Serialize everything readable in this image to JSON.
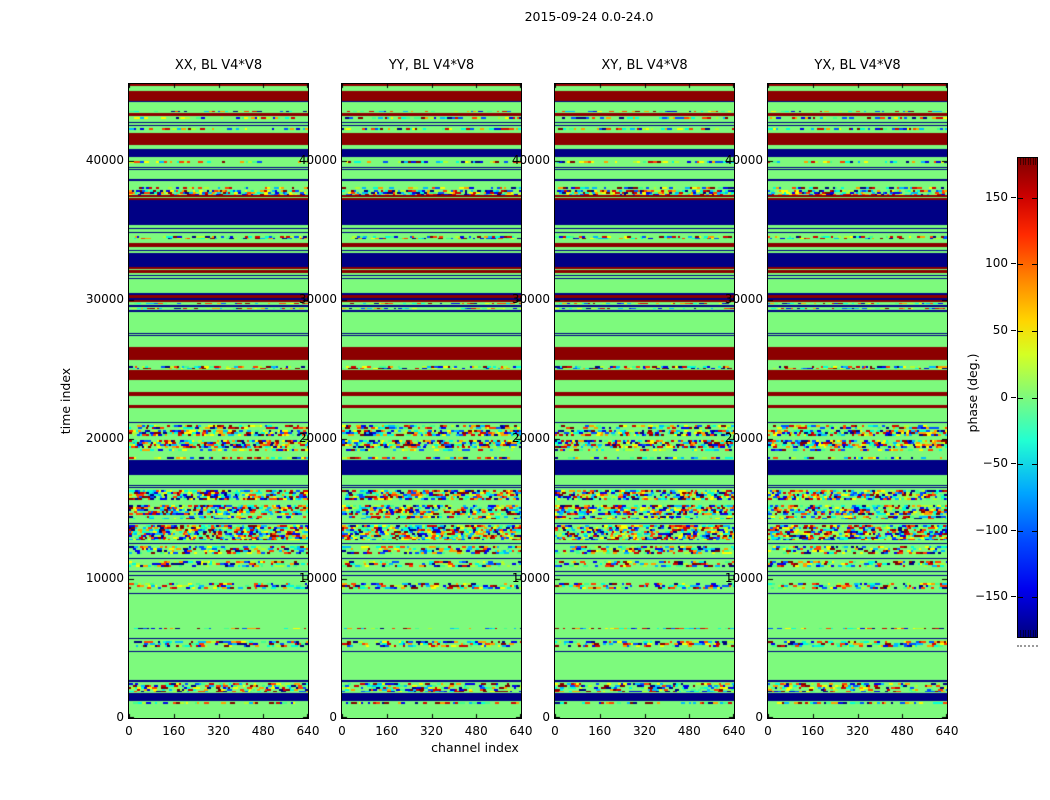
{
  "chart_data": {
    "type": "heatmap",
    "figure_title": "2015-09-24 0.0-24.0",
    "xlabel": "channel index",
    "ylabel": "time index",
    "panels": [
      {
        "title": "XX, BL V4*V8"
      },
      {
        "title": "YY, BL V4*V8"
      },
      {
        "title": "XY, BL V4*V8"
      },
      {
        "title": "YX, BL V4*V8"
      }
    ],
    "x_ticks": [
      0,
      160,
      320,
      480,
      640
    ],
    "y_ticks": [
      0,
      10000,
      20000,
      30000,
      40000
    ],
    "xlim": [
      0,
      640
    ],
    "ylim": [
      0,
      45500
    ],
    "grid": false,
    "legend_position": "none",
    "colorbar": {
      "label": "phase (deg.)",
      "ticks": [
        150,
        100,
        50,
        0,
        -50,
        -100,
        -150
      ],
      "tick_labels": [
        "150",
        "100",
        "50",
        "0",
        "−50",
        "−100",
        "−150"
      ],
      "range": [
        -180,
        180
      ],
      "colormap": "jet"
    },
    "band_colors": {
      "g": "#7dfa7d",
      "r": "#8c0000",
      "b": "#000085"
    },
    "noise_palette": [
      "#000080",
      "#0000e8",
      "#0050ff",
      "#00b8ff",
      "#00ffd8",
      "#40ff90",
      "#b0ff30",
      "#ffff00",
      "#ffa000",
      "#ff4000",
      "#d00000",
      "#800000"
    ],
    "band_types_legend": {
      "g": "solid light green, phase ~0 deg",
      "r": "solid dark red, phase ~+180 deg",
      "b": "solid dark blue, phase ~-180 deg",
      "gl": "green with thin dark-blue lines",
      "rs": "dark red with thin green lines",
      "n": "sparse random phase-noise speckle rows on green",
      "nd": "dense random phase-noise mosaic"
    },
    "bands_top_to_bottom": [
      [
        1.5,
        "r"
      ],
      [
        5,
        "g"
      ],
      [
        10,
        "r"
      ],
      [
        1.5,
        "b"
      ],
      [
        8,
        "g"
      ],
      [
        3,
        "n"
      ],
      [
        3,
        "r"
      ],
      [
        4,
        "n"
      ],
      [
        7,
        "gl"
      ],
      [
        4,
        "n"
      ],
      [
        2,
        "g"
      ],
      [
        12,
        "r"
      ],
      [
        4,
        "g"
      ],
      [
        8,
        "b"
      ],
      [
        3,
        "g"
      ],
      [
        4,
        "n"
      ],
      [
        8,
        "gl"
      ],
      [
        7,
        "g"
      ],
      [
        2,
        "b"
      ],
      [
        5,
        "g"
      ],
      [
        4,
        "n"
      ],
      [
        5,
        "nd"
      ],
      [
        5,
        "rs"
      ],
      [
        25,
        "b"
      ],
      [
        10,
        "gl"
      ],
      [
        5,
        "n"
      ],
      [
        3,
        "g"
      ],
      [
        4,
        "r"
      ],
      [
        6,
        "gl"
      ],
      [
        14,
        "b"
      ],
      [
        6,
        "rs"
      ],
      [
        7,
        "gl"
      ],
      [
        13,
        "g"
      ],
      [
        2,
        "b"
      ],
      [
        3,
        "r"
      ],
      [
        2,
        "b"
      ],
      [
        2,
        "r"
      ],
      [
        3,
        "n"
      ],
      [
        2,
        "b"
      ],
      [
        3,
        "n"
      ],
      [
        2,
        "b"
      ],
      [
        18,
        "g"
      ],
      [
        8,
        "gl"
      ],
      [
        9,
        "g"
      ],
      [
        13,
        "r"
      ],
      [
        5,
        "g"
      ],
      [
        5,
        "n"
      ],
      [
        10,
        "r"
      ],
      [
        12,
        "g"
      ],
      [
        4,
        "r"
      ],
      [
        9,
        "g"
      ],
      [
        3,
        "r"
      ],
      [
        12,
        "g"
      ],
      [
        4,
        "gl"
      ],
      [
        6,
        "n"
      ],
      [
        6,
        "nd"
      ],
      [
        4,
        "g"
      ],
      [
        8,
        "nd"
      ],
      [
        4,
        "n"
      ],
      [
        4,
        "g"
      ],
      [
        4,
        "n"
      ],
      [
        15,
        "b"
      ],
      [
        7,
        "g"
      ],
      [
        8,
        "gl"
      ],
      [
        10,
        "nd"
      ],
      [
        5,
        "g"
      ],
      [
        10,
        "nd"
      ],
      [
        5,
        "n"
      ],
      [
        5,
        "gl"
      ],
      [
        15,
        "nd"
      ],
      [
        5,
        "gl"
      ],
      [
        10,
        "n"
      ],
      [
        5,
        "gl"
      ],
      [
        8,
        "n"
      ],
      [
        10,
        "gl"
      ],
      [
        4,
        "g"
      ],
      [
        8,
        "n"
      ],
      [
        5,
        "gl"
      ],
      [
        32,
        "g"
      ],
      [
        3,
        "n"
      ],
      [
        5,
        "g"
      ],
      [
        5,
        "gl"
      ],
      [
        8,
        "n"
      ],
      [
        5,
        "gl"
      ],
      [
        27,
        "g"
      ],
      [
        2,
        "b"
      ],
      [
        11,
        "n"
      ],
      [
        8,
        "b"
      ],
      [
        4,
        "n"
      ],
      [
        13,
        "g"
      ]
    ]
  },
  "colors": {
    "background": "#ffffff",
    "axis": "#000000",
    "text": "#000000",
    "phase_zero_green": "#7dfa7d",
    "phase_plus180_red": "#8c0000",
    "phase_minus180_blue": "#000085"
  }
}
